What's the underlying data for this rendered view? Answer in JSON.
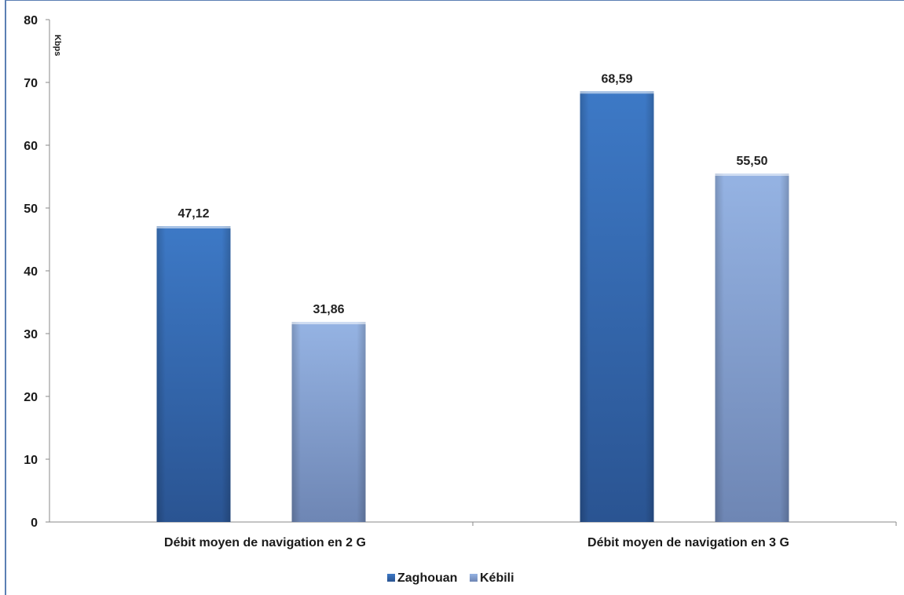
{
  "chart_data": {
    "type": "bar",
    "title": "",
    "xlabel": "",
    "ylabel": "Kbps",
    "ylim": [
      0,
      80
    ],
    "yticks": [
      0,
      10,
      20,
      30,
      40,
      50,
      60,
      70,
      80
    ],
    "categories": [
      "Débit moyen de navigation en 2 G",
      "Débit moyen de navigation en 3 G"
    ],
    "series": [
      {
        "name": "Zaghouan",
        "values": [
          47.12,
          68.59
        ],
        "labels": [
          "47,12",
          "68,59"
        ],
        "color": "#3a6fb8"
      },
      {
        "name": "Kébili",
        "values": [
          31.86,
          55.5
        ],
        "labels": [
          "31,86",
          "55,50"
        ],
        "color": "#8aa7d8"
      }
    ],
    "grid": false,
    "legend_position": "bottom"
  }
}
